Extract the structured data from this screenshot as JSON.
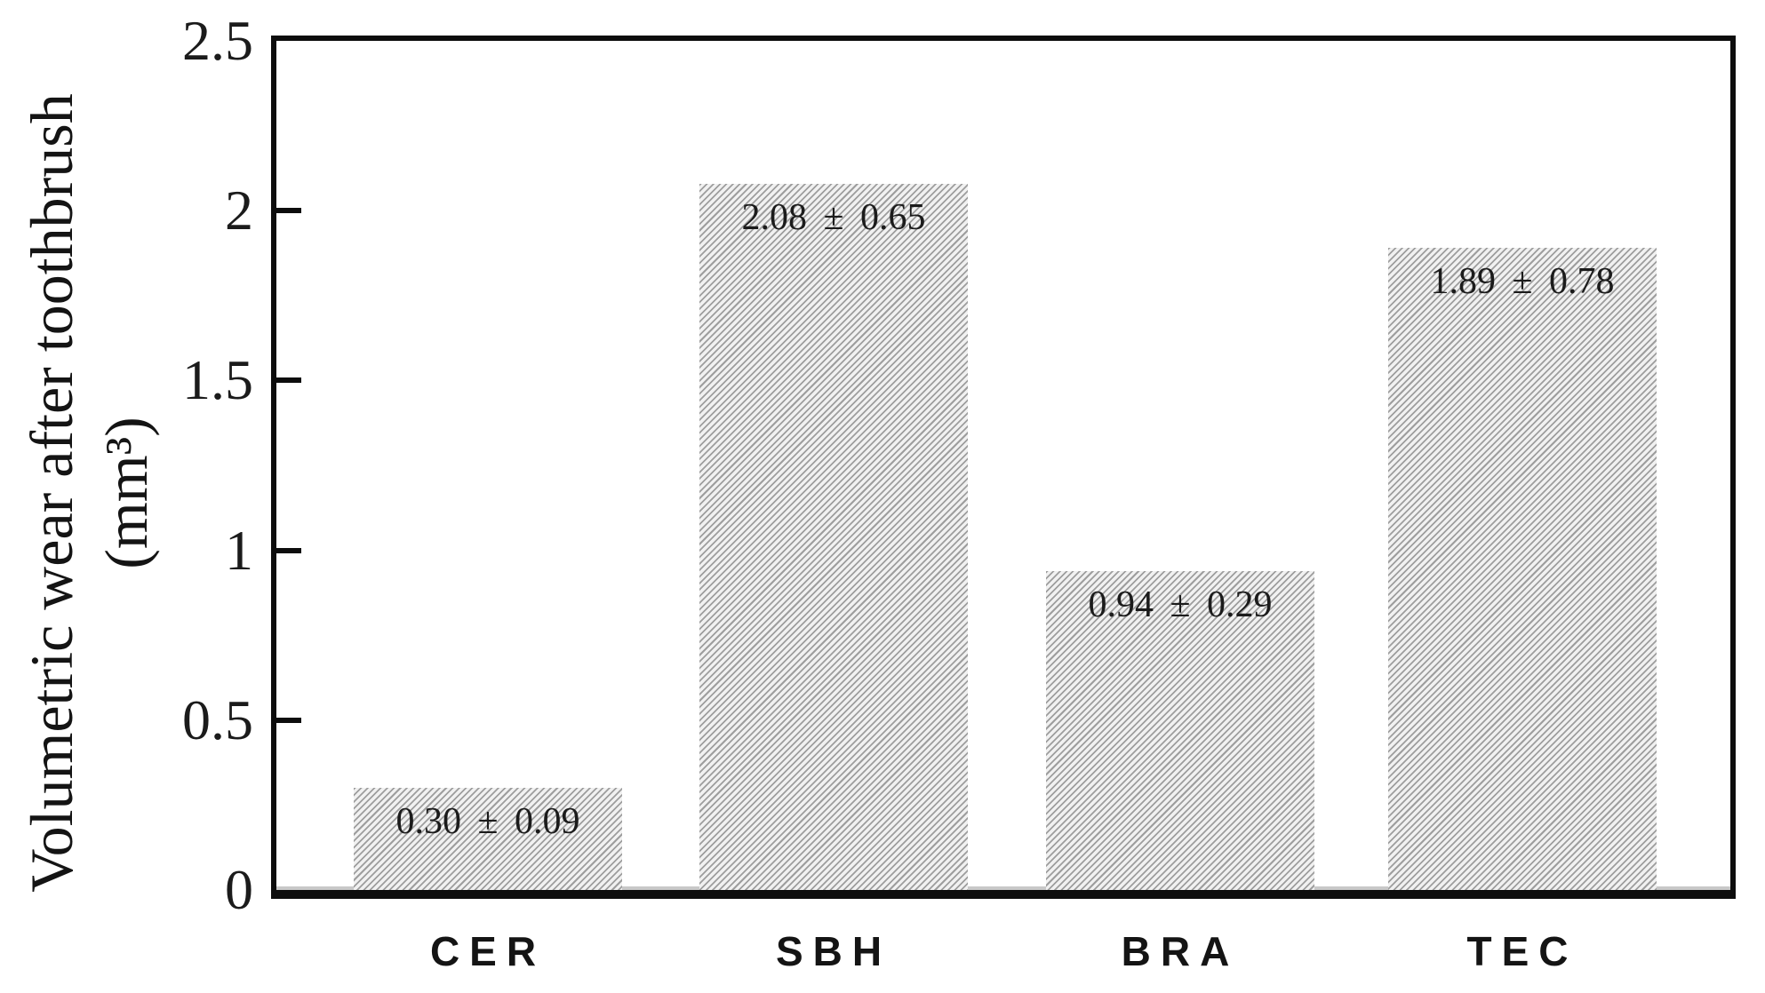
{
  "chart_data": {
    "type": "bar",
    "title": "",
    "categories": [
      "CER",
      "SBH",
      "BRA",
      "TEC"
    ],
    "values": [
      0.3,
      2.08,
      0.94,
      1.89
    ],
    "errors": [
      0.09,
      0.65,
      0.29,
      0.78
    ],
    "bar_labels": [
      "0.30 ± 0.09",
      "2.08 ± 0.65",
      "0.94 ± 0.29",
      "1.89 ± 0.78"
    ],
    "ylabel_line1": "Volumetric wear after toothbrush",
    "ylabel_line2": "(mm³)",
    "xlabel": "",
    "ylim": [
      0,
      2.5
    ],
    "y_tick_labels": [
      "0",
      "0.5",
      "1",
      "1.5",
      "2",
      "2.5"
    ],
    "y_tick_values": [
      0,
      0.5,
      1,
      1.5,
      2,
      2.5
    ],
    "inner_tick_values": [
      0.5,
      1,
      1.5,
      2
    ],
    "grid": false,
    "legend": null,
    "bar_fill": "diagonal-hatch",
    "colors": {
      "hatch_line": "#9e9e9e",
      "hatch_bg": "#f1f1f1",
      "frame": "#0d0d0d",
      "text": "#1b1b1b"
    }
  }
}
